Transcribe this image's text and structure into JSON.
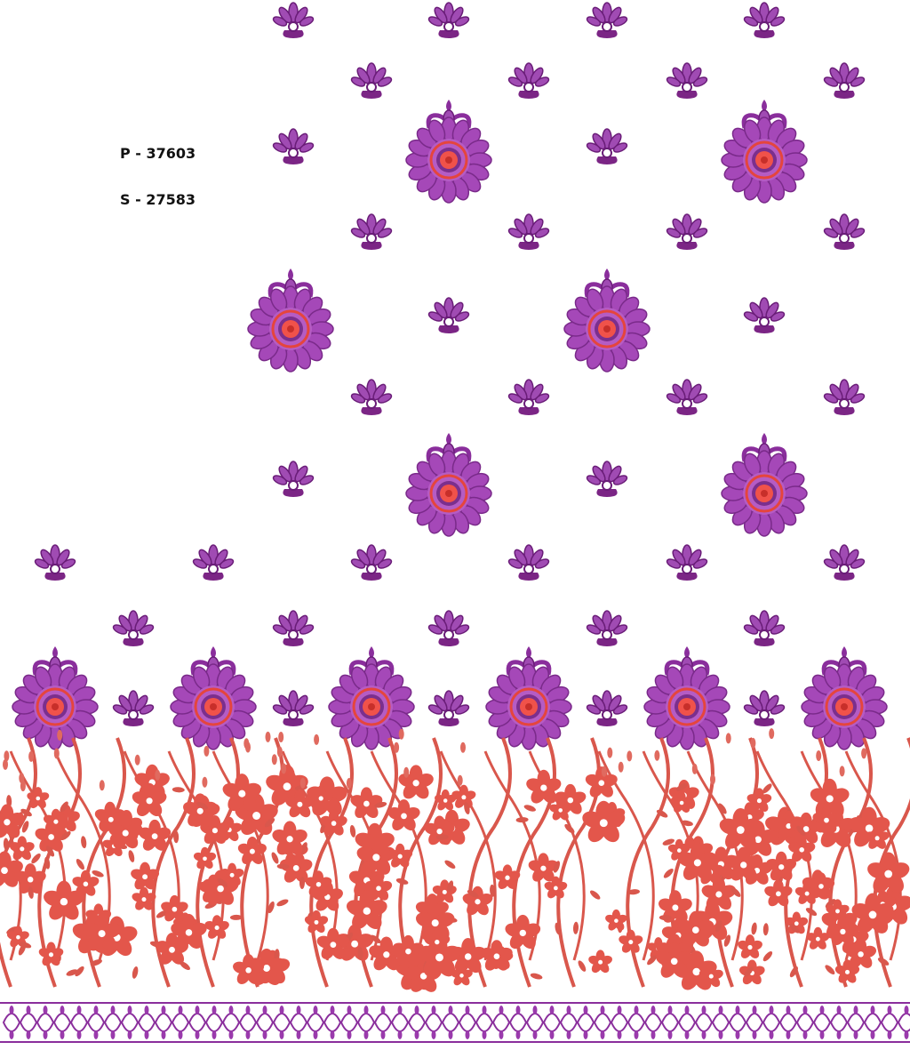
{
  "design_codes": {
    "p_code": "P - 37603",
    "s_code": "S - 27583"
  }
}
